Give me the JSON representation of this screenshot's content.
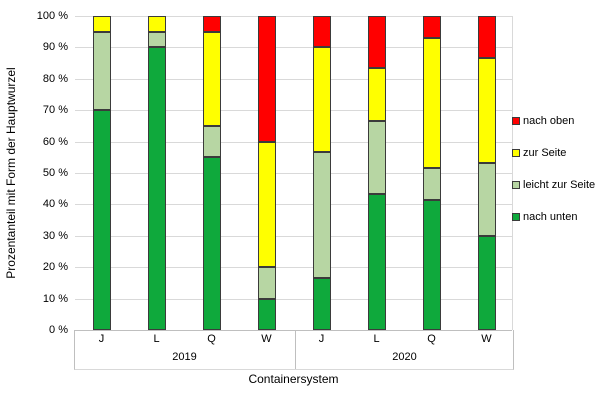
{
  "chart_data": {
    "type": "bar",
    "stacked": true,
    "title": "",
    "xlabel": "Containersystem",
    "ylabel": "Prozentanteil mit Form der Hauptwurzel",
    "ylim": [
      0,
      100
    ],
    "ytick_step": 10,
    "yticks": [
      "0 %",
      "10 %",
      "20 %",
      "30 %",
      "40 %",
      "50 %",
      "60 %",
      "70 %",
      "80 %",
      "90 %",
      "100 %"
    ],
    "grid": true,
    "legend_position": "right",
    "groups": [
      {
        "label": "2019",
        "categories": [
          "J",
          "L",
          "Q",
          "W"
        ]
      },
      {
        "label": "2020",
        "categories": [
          "J",
          "L",
          "Q",
          "W"
        ]
      }
    ],
    "series": [
      {
        "name": "nach unten",
        "color": "#0fa93c",
        "values": [
          70,
          90,
          55,
          10,
          16.7,
          43.3,
          41.4,
          30
        ]
      },
      {
        "name": "leicht zur Seite",
        "color": "#b7d6a3",
        "values": [
          25,
          5,
          10,
          10,
          40,
          23.3,
          10.3,
          23.3
        ]
      },
      {
        "name": "zur Seite",
        "color": "#ffff00",
        "values": [
          5,
          5,
          30,
          40,
          33.3,
          16.7,
          41.4,
          33.4
        ]
      },
      {
        "name": "nach oben",
        "color": "#ff0000",
        "values": [
          0,
          0,
          5,
          40,
          10,
          16.7,
          6.9,
          13.3
        ]
      }
    ],
    "legend": [
      {
        "label": "nach oben",
        "color": "#ff0000"
      },
      {
        "label": "zur Seite",
        "color": "#ffff00"
      },
      {
        "label": "leicht zur Seite",
        "color": "#b7d6a3"
      },
      {
        "label": "nach unten",
        "color": "#0fa93c"
      }
    ]
  },
  "style_colors": {
    "segment_border": "#3b3b3b",
    "gridline": "#d9d9d9",
    "axis": "#bfbfbf",
    "text": "#000000",
    "background": "#ffffff"
  }
}
